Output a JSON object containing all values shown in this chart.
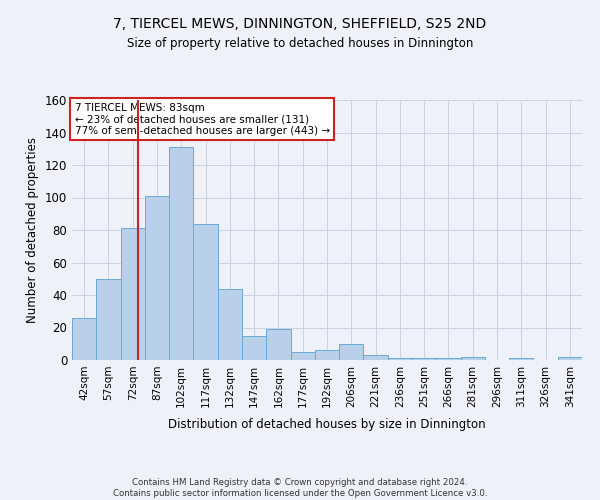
{
  "title1": "7, TIERCEL MEWS, DINNINGTON, SHEFFIELD, S25 2ND",
  "title2": "Size of property relative to detached houses in Dinnington",
  "xlabel": "Distribution of detached houses by size in Dinnington",
  "ylabel": "Number of detached properties",
  "categories": [
    "42sqm",
    "57sqm",
    "72sqm",
    "87sqm",
    "102sqm",
    "117sqm",
    "132sqm",
    "147sqm",
    "162sqm",
    "177sqm",
    "192sqm",
    "206sqm",
    "221sqm",
    "236sqm",
    "251sqm",
    "266sqm",
    "281sqm",
    "296sqm",
    "311sqm",
    "326sqm",
    "341sqm"
  ],
  "values": [
    26,
    50,
    81,
    101,
    131,
    84,
    44,
    15,
    19,
    5,
    6,
    10,
    3,
    1,
    1,
    1,
    2,
    0,
    1,
    0,
    2
  ],
  "bar_color": "#b8d0ea",
  "bar_edge_color": "#6aaad4",
  "grid_color": "#c8d4e0",
  "vline_color": "#cc2222",
  "annotation_text": "7 TIERCEL MEWS: 83sqm\n← 23% of detached houses are smaller (131)\n77% of semi-detached houses are larger (443) →",
  "annotation_box_color": "#ffffff",
  "annotation_box_edge": "#cc2222",
  "ylim": [
    0,
    160
  ],
  "yticks": [
    0,
    20,
    40,
    60,
    80,
    100,
    120,
    140,
    160
  ],
  "footnote": "Contains HM Land Registry data © Crown copyright and database right 2024.\nContains public sector information licensed under the Open Government Licence v3.0.",
  "background_color": "#eef2f8",
  "vline_pos": 2.73
}
